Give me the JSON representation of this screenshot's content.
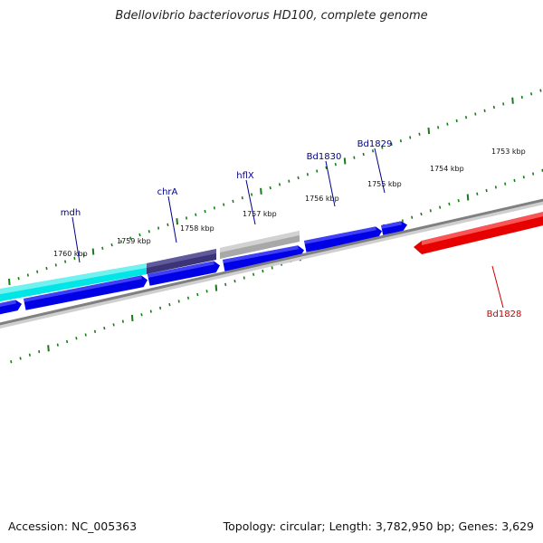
{
  "title": "Bdellovibrio bacteriovorus HD100, complete genome",
  "footer": {
    "accession": "Accession: NC_005363",
    "summary": "Topology: circular; Length: 3,782,950 bp; Genes: 3,629"
  },
  "colors": {
    "forward_gene": "#0000e6",
    "mdh": "#00e5e5",
    "chrA": "#3b3577",
    "hflX": "#a8a8a8",
    "reverse_gene": "#e60000",
    "backbone": "#808080",
    "tick": "#1a7a1a",
    "label_blue": "#00008b",
    "label_red": "#cc0000"
  },
  "scale": {
    "tick_labels": [
      "1753 kbp",
      "1754 kbp",
      "1755 kbp",
      "1756 kbp",
      "1757 kbp",
      "1758 kbp",
      "1759 kbp",
      "1760 kbp"
    ]
  },
  "genes": [
    {
      "name": "Bd1828",
      "strand": "reverse",
      "color_key": "reverse_gene"
    },
    {
      "name": "Bd1829",
      "strand": "forward",
      "color_key": "forward_gene"
    },
    {
      "name": "Bd1830",
      "strand": "forward",
      "color_key": "forward_gene"
    },
    {
      "name": "hflX",
      "strand": "forward",
      "color_key": "hflX"
    },
    {
      "name": "chrA",
      "strand": "forward",
      "color_key": "chrA"
    },
    {
      "name": "mdh",
      "strand": "forward",
      "color_key": "mdh"
    }
  ]
}
